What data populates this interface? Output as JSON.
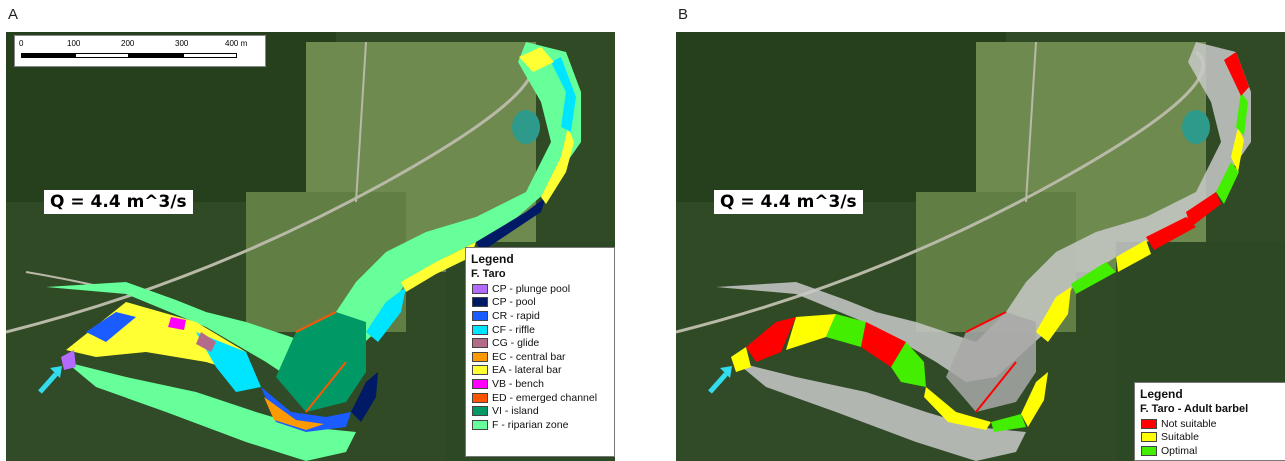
{
  "panels": {
    "a": {
      "letter": "A",
      "discharge": "Q = 4.4 m^3/s",
      "scale": {
        "ticks": [
          "0",
          "100",
          "200",
          "300",
          "400 m"
        ]
      },
      "legend": {
        "title": "Legend",
        "subtitle": "F. Taro",
        "items": [
          {
            "label": "CP - plunge pool",
            "color": "#b36bff"
          },
          {
            "label": "CP - pool",
            "color": "#001a66"
          },
          {
            "label": "CR - rapid",
            "color": "#1a5cff"
          },
          {
            "label": "CF - riffle",
            "color": "#00e5ff"
          },
          {
            "label": "CG - glide",
            "color": "#b36b8a"
          },
          {
            "label": "EC - central bar",
            "color": "#ff9900"
          },
          {
            "label": "EA - lateral bar",
            "color": "#ffff33"
          },
          {
            "label": "VB - bench",
            "color": "#ff00ff"
          },
          {
            "label": "ED - emerged channel",
            "color": "#ff5500"
          },
          {
            "label": "VI - island",
            "color": "#009966"
          },
          {
            "label": "F  - riparian zone",
            "color": "#66ff99"
          }
        ]
      }
    },
    "b": {
      "letter": "B",
      "discharge": "Q = 4.4 m^3/s",
      "legend": {
        "title": "Legend",
        "subtitle": "F. Taro - Adult barbel",
        "items": [
          {
            "label": "Not suitable",
            "color": "#ff0000"
          },
          {
            "label": "Suitable",
            "color": "#ffff00"
          },
          {
            "label": "Optimal",
            "color": "#44ee00"
          }
        ]
      }
    }
  }
}
